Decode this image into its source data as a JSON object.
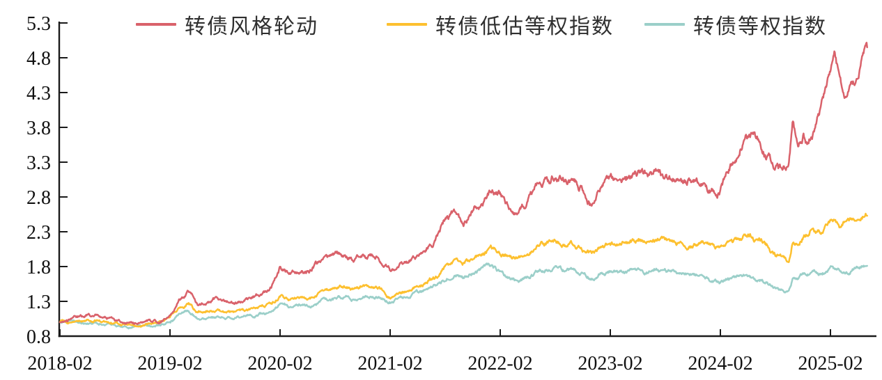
{
  "chart_data": {
    "type": "line",
    "title": "",
    "grid": false,
    "legend_position": "top",
    "x_axis": {
      "start": "2018-02",
      "end": "2025-06",
      "tick_labels": [
        "2018-02",
        "2019-02",
        "2020-02",
        "2021-02",
        "2022-02",
        "2023-02",
        "2024-02",
        "2025-02"
      ]
    },
    "y_axis": {
      "min": 0.8,
      "max": 5.3,
      "step": 0.5,
      "tick_labels": [
        "0.8",
        "1.3",
        "1.8",
        "2.3",
        "2.8",
        "3.3",
        "3.8",
        "4.3",
        "4.8",
        "5.3"
      ]
    },
    "series": [
      {
        "name": "转债风格轮动",
        "key": "style-rotation",
        "color": "#d9626b",
        "points": [
          [
            "2018-02",
            1.0
          ],
          [
            "2018-03",
            1.04
          ],
          [
            "2018-05",
            1.09
          ],
          [
            "2018-06",
            1.1
          ],
          [
            "2018-08",
            1.01
          ],
          [
            "2018-10",
            0.98
          ],
          [
            "2018-12",
            1.01
          ],
          [
            "2019-01",
            1.02
          ],
          [
            "2019-02",
            1.12
          ],
          [
            "2019-03",
            1.35
          ],
          [
            "2019-04",
            1.44
          ],
          [
            "2019-05",
            1.26
          ],
          [
            "2019-06",
            1.3
          ],
          [
            "2019-07",
            1.33
          ],
          [
            "2019-09",
            1.29
          ],
          [
            "2019-11",
            1.36
          ],
          [
            "2019-12",
            1.41
          ],
          [
            "2020-01",
            1.5
          ],
          [
            "2020-02",
            1.8
          ],
          [
            "2020-03",
            1.7
          ],
          [
            "2020-04",
            1.75
          ],
          [
            "2020-05",
            1.72
          ],
          [
            "2020-06",
            1.82
          ],
          [
            "2020-07",
            1.96
          ],
          [
            "2020-08",
            1.95
          ],
          [
            "2020-09",
            1.97
          ],
          [
            "2020-10",
            1.92
          ],
          [
            "2020-11",
            1.97
          ],
          [
            "2020-12",
            1.96
          ],
          [
            "2021-01",
            1.9
          ],
          [
            "2021-02",
            1.76
          ],
          [
            "2021-03",
            1.82
          ],
          [
            "2021-04",
            1.88
          ],
          [
            "2021-05",
            1.95
          ],
          [
            "2021-06",
            2.1
          ],
          [
            "2021-07",
            2.2
          ],
          [
            "2021-08",
            2.45
          ],
          [
            "2021-09",
            2.56
          ],
          [
            "2021-10",
            2.4
          ],
          [
            "2021-11",
            2.65
          ],
          [
            "2021-12",
            2.72
          ],
          [
            "2022-01",
            2.88
          ],
          [
            "2022-02",
            2.83
          ],
          [
            "2022-03",
            2.64
          ],
          [
            "2022-04",
            2.58
          ],
          [
            "2022-05",
            2.7
          ],
          [
            "2022-06",
            2.96
          ],
          [
            "2022-07",
            3.05
          ],
          [
            "2022-08",
            3.12
          ],
          [
            "2022-09",
            3.0
          ],
          [
            "2022-10",
            3.05
          ],
          [
            "2022-11",
            2.9
          ],
          [
            "2022-12",
            2.68
          ],
          [
            "2023-01",
            2.95
          ],
          [
            "2023-02",
            3.06
          ],
          [
            "2023-03",
            3.05
          ],
          [
            "2023-04",
            3.12
          ],
          [
            "2023-06",
            3.17
          ],
          [
            "2023-08",
            3.1
          ],
          [
            "2023-09",
            3.02
          ],
          [
            "2023-10",
            2.98
          ],
          [
            "2023-11",
            3.05
          ],
          [
            "2023-12",
            3.02
          ],
          [
            "2024-01",
            2.9
          ],
          [
            "2024-02",
            2.88
          ],
          [
            "2024-03",
            3.18
          ],
          [
            "2024-04",
            3.45
          ],
          [
            "2024-04-20",
            3.73
          ],
          [
            "2024-05",
            3.68
          ],
          [
            "2024-06",
            3.62
          ],
          [
            "2024-07",
            3.42
          ],
          [
            "2024-08",
            3.25
          ],
          [
            "2024-08-20",
            3.18
          ],
          [
            "2024-09-15",
            3.28
          ],
          [
            "2024-09-28",
            3.88
          ],
          [
            "2024-10-15",
            3.52
          ],
          [
            "2024-11",
            3.72
          ],
          [
            "2024-11-15",
            3.6
          ],
          [
            "2024-12",
            3.72
          ],
          [
            "2025-01",
            4.1
          ],
          [
            "2025-02",
            4.65
          ],
          [
            "2025-02-15",
            4.85
          ],
          [
            "2025-03-10",
            4.32
          ],
          [
            "2025-03-20",
            4.24
          ],
          [
            "2025-04-10",
            4.55
          ],
          [
            "2025-05",
            4.5
          ],
          [
            "2025-05-20",
            4.85
          ],
          [
            "2025-06",
            4.95
          ]
        ]
      },
      {
        "name": "转债低估等权指数",
        "key": "low-valuation-equal-weight",
        "color": "#fdc02f",
        "points": [
          [
            "2018-02",
            1.0
          ],
          [
            "2018-04",
            1.01
          ],
          [
            "2018-06",
            1.02
          ],
          [
            "2018-08",
            0.98
          ],
          [
            "2018-10",
            0.96
          ],
          [
            "2018-12",
            0.98
          ],
          [
            "2019-02",
            1.06
          ],
          [
            "2019-03",
            1.2
          ],
          [
            "2019-04",
            1.27
          ],
          [
            "2019-05",
            1.14
          ],
          [
            "2019-07",
            1.17
          ],
          [
            "2019-09",
            1.15
          ],
          [
            "2019-11",
            1.2
          ],
          [
            "2020-01",
            1.26
          ],
          [
            "2020-02",
            1.38
          ],
          [
            "2020-03",
            1.32
          ],
          [
            "2020-04",
            1.35
          ],
          [
            "2020-05",
            1.34
          ],
          [
            "2020-06",
            1.38
          ],
          [
            "2020-07",
            1.47
          ],
          [
            "2020-08",
            1.48
          ],
          [
            "2020-09",
            1.5
          ],
          [
            "2020-10",
            1.46
          ],
          [
            "2020-11",
            1.53
          ],
          [
            "2020-12",
            1.5
          ],
          [
            "2021-01",
            1.46
          ],
          [
            "2021-02",
            1.34
          ],
          [
            "2021-03",
            1.4
          ],
          [
            "2021-04",
            1.45
          ],
          [
            "2021-05",
            1.5
          ],
          [
            "2021-06",
            1.58
          ],
          [
            "2021-07",
            1.65
          ],
          [
            "2021-08",
            1.78
          ],
          [
            "2021-09",
            1.88
          ],
          [
            "2021-10",
            1.84
          ],
          [
            "2021-11",
            1.92
          ],
          [
            "2021-12",
            1.98
          ],
          [
            "2022-01",
            2.08
          ],
          [
            "2022-02",
            2.02
          ],
          [
            "2022-03",
            1.95
          ],
          [
            "2022-04",
            1.92
          ],
          [
            "2022-05",
            1.98
          ],
          [
            "2022-06",
            2.07
          ],
          [
            "2022-07",
            2.12
          ],
          [
            "2022-08",
            2.16
          ],
          [
            "2022-09",
            2.1
          ],
          [
            "2022-10",
            2.12
          ],
          [
            "2022-11",
            2.05
          ],
          [
            "2022-12",
            1.97
          ],
          [
            "2023-01",
            2.06
          ],
          [
            "2023-02",
            2.1
          ],
          [
            "2023-04",
            2.16
          ],
          [
            "2023-06",
            2.15
          ],
          [
            "2023-08",
            2.19
          ],
          [
            "2023-10",
            2.12
          ],
          [
            "2023-12",
            2.14
          ],
          [
            "2024-01",
            2.1
          ],
          [
            "2024-02",
            2.06
          ],
          [
            "2024-03",
            2.14
          ],
          [
            "2024-04",
            2.2
          ],
          [
            "2024-05",
            2.26
          ],
          [
            "2024-06",
            2.2
          ],
          [
            "2024-07",
            2.1
          ],
          [
            "2024-08",
            1.96
          ],
          [
            "2024-09-15",
            1.9
          ],
          [
            "2024-09-28",
            2.18
          ],
          [
            "2024-10-15",
            2.15
          ],
          [
            "2024-11",
            2.25
          ],
          [
            "2024-12",
            2.32
          ],
          [
            "2025-01",
            2.3
          ],
          [
            "2025-02",
            2.43
          ],
          [
            "2025-03",
            2.38
          ],
          [
            "2025-04",
            2.46
          ],
          [
            "2025-05",
            2.5
          ],
          [
            "2025-06",
            2.53
          ]
        ]
      },
      {
        "name": "转债等权指数",
        "key": "equal-weight",
        "color": "#9bcfc9",
        "points": [
          [
            "2018-02",
            1.0
          ],
          [
            "2018-04",
            1.0
          ],
          [
            "2018-06",
            0.98
          ],
          [
            "2018-08",
            0.94
          ],
          [
            "2018-10",
            0.92
          ],
          [
            "2018-12",
            0.94
          ],
          [
            "2019-02",
            1.0
          ],
          [
            "2019-03",
            1.12
          ],
          [
            "2019-04",
            1.18
          ],
          [
            "2019-05",
            1.05
          ],
          [
            "2019-07",
            1.08
          ],
          [
            "2019-09",
            1.05
          ],
          [
            "2019-11",
            1.09
          ],
          [
            "2020-01",
            1.14
          ],
          [
            "2020-02",
            1.27
          ],
          [
            "2020-03",
            1.21
          ],
          [
            "2020-04",
            1.23
          ],
          [
            "2020-05",
            1.22
          ],
          [
            "2020-06",
            1.26
          ],
          [
            "2020-07",
            1.33
          ],
          [
            "2020-08",
            1.34
          ],
          [
            "2020-09",
            1.36
          ],
          [
            "2020-10",
            1.32
          ],
          [
            "2020-11",
            1.39
          ],
          [
            "2020-12",
            1.37
          ],
          [
            "2021-01",
            1.34
          ],
          [
            "2021-02",
            1.28
          ],
          [
            "2021-03",
            1.32
          ],
          [
            "2021-04",
            1.37
          ],
          [
            "2021-05",
            1.41
          ],
          [
            "2021-06",
            1.47
          ],
          [
            "2021-07",
            1.52
          ],
          [
            "2021-08",
            1.62
          ],
          [
            "2021-09",
            1.69
          ],
          [
            "2021-10",
            1.66
          ],
          [
            "2021-11",
            1.72
          ],
          [
            "2021-12",
            1.77
          ],
          [
            "2022-01",
            1.8
          ],
          [
            "2022-02",
            1.73
          ],
          [
            "2022-03",
            1.63
          ],
          [
            "2022-04",
            1.58
          ],
          [
            "2022-05",
            1.64
          ],
          [
            "2022-06",
            1.72
          ],
          [
            "2022-07",
            1.76
          ],
          [
            "2022-08",
            1.8
          ],
          [
            "2022-09",
            1.74
          ],
          [
            "2022-10",
            1.75
          ],
          [
            "2022-11",
            1.7
          ],
          [
            "2022-12",
            1.62
          ],
          [
            "2023-01",
            1.69
          ],
          [
            "2023-02",
            1.71
          ],
          [
            "2023-04",
            1.74
          ],
          [
            "2023-06",
            1.72
          ],
          [
            "2023-08",
            1.74
          ],
          [
            "2023-10",
            1.68
          ],
          [
            "2023-12",
            1.67
          ],
          [
            "2024-01",
            1.6
          ],
          [
            "2024-02",
            1.56
          ],
          [
            "2024-03",
            1.61
          ],
          [
            "2024-04",
            1.64
          ],
          [
            "2024-05",
            1.66
          ],
          [
            "2024-06",
            1.62
          ],
          [
            "2024-07",
            1.56
          ],
          [
            "2024-08",
            1.48
          ],
          [
            "2024-09-15",
            1.44
          ],
          [
            "2024-09-28",
            1.62
          ],
          [
            "2024-10-15",
            1.6
          ],
          [
            "2024-11",
            1.67
          ],
          [
            "2024-12",
            1.71
          ],
          [
            "2025-01",
            1.69
          ],
          [
            "2025-02",
            1.78
          ],
          [
            "2025-03",
            1.72
          ],
          [
            "2025-04",
            1.76
          ],
          [
            "2025-05",
            1.79
          ],
          [
            "2025-06",
            1.81
          ]
        ]
      }
    ]
  },
  "legend": {
    "items": [
      {
        "label": "转债风格轮动"
      },
      {
        "label": "转债低估等权指数"
      },
      {
        "label": "转债等权指数"
      }
    ]
  },
  "colors": {
    "axis": "#1a1a1a",
    "tick_text": "#111111",
    "legend_text": "#2f2f2f",
    "background": "#ffffff",
    "series_red": "#d9626b",
    "series_yellow": "#fdc02f",
    "series_teal": "#9bcfc9"
  }
}
